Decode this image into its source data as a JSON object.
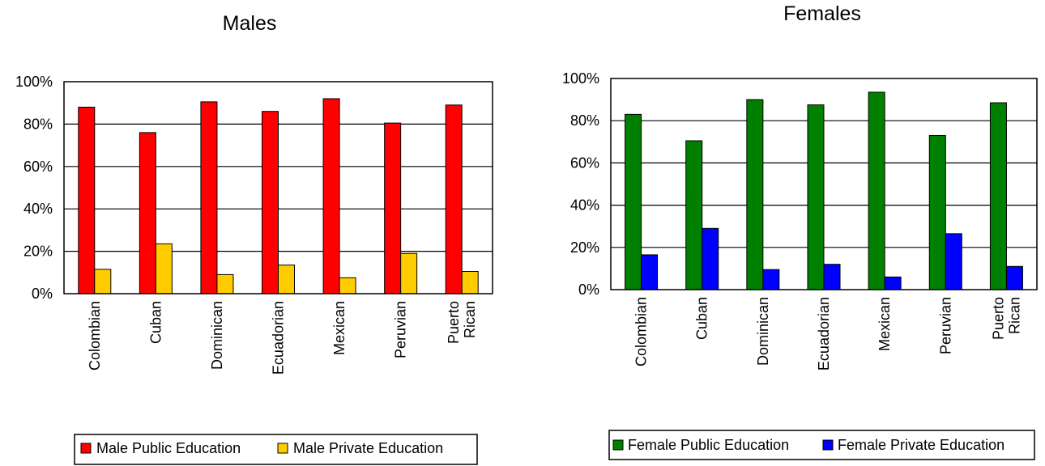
{
  "chart_data": [
    {
      "type": "bar",
      "title": "Males",
      "categories": [
        "Colombian",
        "Cuban",
        "Dominican",
        "Ecuadorian",
        "Mexican",
        "Peruvian",
        "Puerto Rican"
      ],
      "series": [
        {
          "name": "Male Public Education",
          "color": "#ff0000",
          "values": [
            88,
            76,
            90.5,
            86,
            92,
            80.5,
            89
          ]
        },
        {
          "name": "Male Private Education",
          "color": "#ffcc00",
          "values": [
            11.5,
            23.5,
            9,
            13.5,
            7.5,
            19,
            10.5
          ]
        }
      ],
      "yticks": [
        "0%",
        "20%",
        "40%",
        "60%",
        "80%",
        "100%"
      ],
      "ylim": [
        0,
        100
      ],
      "grid": true,
      "legend_position": "bottom"
    },
    {
      "type": "bar",
      "title": "Females",
      "categories": [
        "Colombian",
        "Cuban",
        "Dominican",
        "Ecuadorian",
        "Mexican",
        "Peruvian",
        "Puerto Rican"
      ],
      "series": [
        {
          "name": "Female Public Education",
          "color": "#008000",
          "values": [
            83,
            70.5,
            90,
            87.5,
            93.5,
            73,
            88.5
          ]
        },
        {
          "name": "Female Private Education",
          "color": "#0000ff",
          "values": [
            16.5,
            29,
            9.5,
            12,
            6,
            26.5,
            11
          ]
        }
      ],
      "yticks": [
        "0%",
        "20%",
        "40%",
        "60%",
        "80%",
        "100%"
      ],
      "ylim": [
        0,
        100
      ],
      "grid": true,
      "legend_position": "bottom"
    }
  ]
}
